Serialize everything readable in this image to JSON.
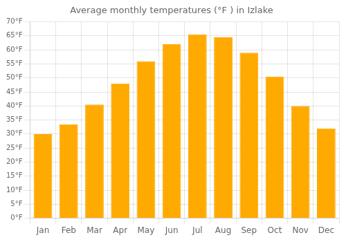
{
  "chart_data": {
    "type": "bar",
    "title": "Average monthly temperatures (°F ) in Izlake",
    "categories": [
      "Jan",
      "Feb",
      "Mar",
      "Apr",
      "May",
      "Jun",
      "Jul",
      "Aug",
      "Sep",
      "Oct",
      "Nov",
      "Dec"
    ],
    "values": [
      30,
      33.5,
      40.5,
      48,
      56,
      62,
      65.5,
      64.5,
      59,
      50.5,
      40,
      32
    ],
    "color": "#FFAA00",
    "ylim": [
      0,
      70
    ],
    "yticks": [
      {
        "value": 0,
        "label": "0°F"
      },
      {
        "value": 5,
        "label": "5°F"
      },
      {
        "value": 10,
        "label": "10°F"
      },
      {
        "value": 15,
        "label": "15°F"
      },
      {
        "value": 20,
        "label": "20°F"
      },
      {
        "value": 25,
        "label": "25°F"
      },
      {
        "value": 30,
        "label": "30°F"
      },
      {
        "value": 35,
        "label": "35°F"
      },
      {
        "value": 40,
        "label": "40°F"
      },
      {
        "value": 45,
        "label": "45°F"
      },
      {
        "value": 50,
        "label": "50°F"
      },
      {
        "value": 55,
        "label": "55°F"
      },
      {
        "value": 60,
        "label": "60°F"
      },
      {
        "value": 65,
        "label": "65°F"
      },
      {
        "value": 70,
        "label": "70°F"
      }
    ],
    "grid": true
  }
}
